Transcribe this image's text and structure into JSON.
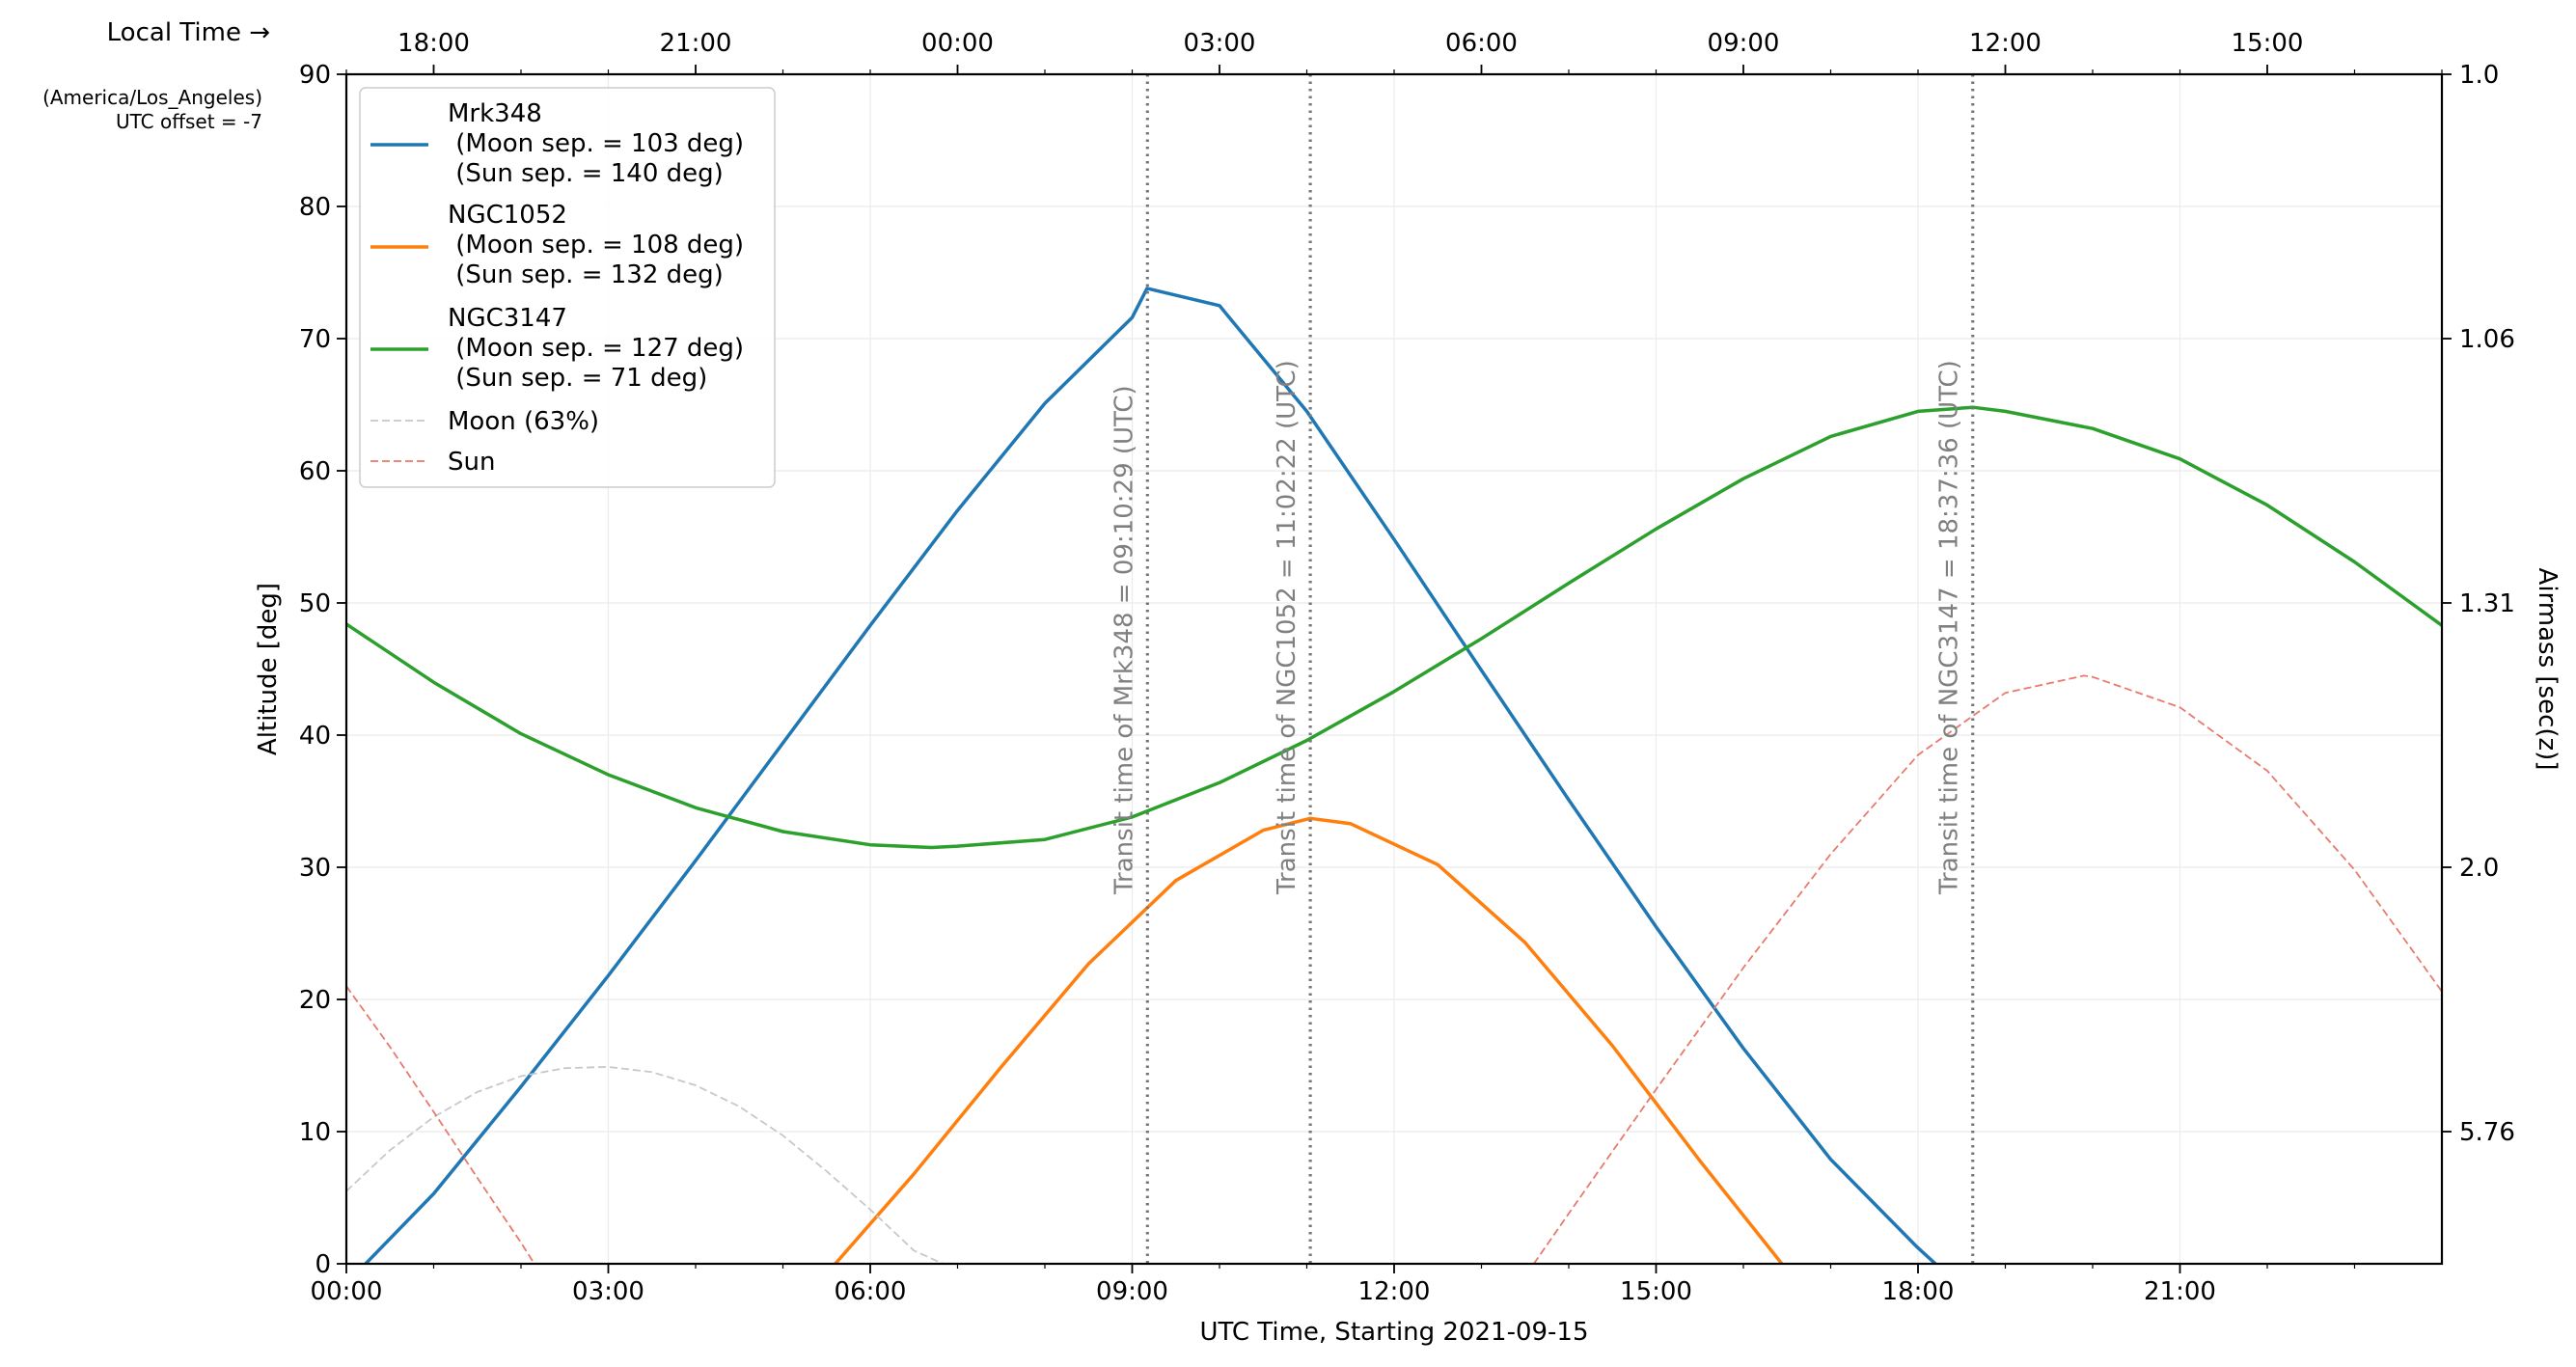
{
  "chart_data": {
    "type": "line",
    "xlabel": "UTC Time, Starting 2021-09-15",
    "ylabel": "Altitude [deg]",
    "y2label": "Airmass [sec(z)]",
    "top_axis_title": "Local Time →",
    "timezone_note": "(America/Los_Angeles)",
    "offset_note": "UTC offset = -7",
    "xlim": [
      0,
      24
    ],
    "ylim": [
      0,
      90
    ],
    "grid": true,
    "legend_position": "top-left",
    "x_ticks": [
      {
        "value": 0,
        "label": "00:00"
      },
      {
        "value": 3,
        "label": "03:00"
      },
      {
        "value": 6,
        "label": "06:00"
      },
      {
        "value": 9,
        "label": "09:00"
      },
      {
        "value": 12,
        "label": "12:00"
      },
      {
        "value": 15,
        "label": "15:00"
      },
      {
        "value": 18,
        "label": "18:00"
      },
      {
        "value": 21,
        "label": "21:00"
      }
    ],
    "y_ticks": [
      0,
      10,
      20,
      30,
      40,
      50,
      60,
      70,
      80,
      90
    ],
    "top_ticks": [
      {
        "value": 1,
        "label": "18:00"
      },
      {
        "value": 4,
        "label": "21:00"
      },
      {
        "value": 7,
        "label": "00:00"
      },
      {
        "value": 10,
        "label": "03:00"
      },
      {
        "value": 13,
        "label": "06:00"
      },
      {
        "value": 16,
        "label": "09:00"
      },
      {
        "value": 19,
        "label": "12:00"
      },
      {
        "value": 22,
        "label": "15:00"
      }
    ],
    "airmass_ticks": [
      {
        "altitude": 90,
        "label": "1.0"
      },
      {
        "altitude": 70,
        "label": "1.06"
      },
      {
        "altitude": 50,
        "label": "1.31"
      },
      {
        "altitude": 30,
        "label": "2.0"
      },
      {
        "altitude": 10,
        "label": "5.76"
      }
    ],
    "series": [
      {
        "name": "Mrk348",
        "legend_lines": [
          "Mrk348",
          " (Moon sep. = 103 deg)",
          " (Sun sep. = 140 deg)"
        ],
        "color": "#1f77b4",
        "style": "solid",
        "x": [
          0,
          1,
          2,
          3,
          4,
          5,
          6,
          7,
          8,
          9,
          9.17,
          10,
          11,
          12,
          13,
          14,
          15,
          16,
          17,
          18,
          18.2
        ],
        "y": [
          -1.5,
          5.3,
          13.4,
          21.8,
          30.5,
          39.4,
          48.3,
          57.0,
          65.1,
          71.6,
          73.8,
          72.5,
          64.5,
          54.8,
          44.9,
          35.1,
          25.5,
          16.3,
          7.9,
          1.2,
          0
        ]
      },
      {
        "name": "NGC1052",
        "legend_lines": [
          "NGC1052",
          " (Moon sep. = 108 deg)",
          " (Sun sep. = 132 deg)"
        ],
        "color": "#ff7f0e",
        "style": "solid",
        "x": [
          5.6,
          6.5,
          7.5,
          8.5,
          9.5,
          10.5,
          11.04,
          11.5,
          12.5,
          13.5,
          14.5,
          15.5,
          16.5
        ],
        "y": [
          0,
          6.8,
          14.9,
          22.7,
          29.0,
          32.8,
          33.7,
          33.3,
          30.2,
          24.3,
          16.5,
          7.8,
          -0.5
        ]
      },
      {
        "name": "NGC3147",
        "legend_lines": [
          "NGC3147",
          " (Moon sep. = 127 deg)",
          " (Sun sep. = 71 deg)"
        ],
        "color": "#2ca02c",
        "style": "solid",
        "x": [
          0,
          1,
          2,
          3,
          4,
          5,
          6,
          6.7,
          7,
          8,
          9,
          10,
          11,
          12,
          13,
          14,
          15,
          16,
          17,
          18,
          18.63,
          19,
          20,
          21,
          22,
          23,
          24
        ],
        "y": [
          48.4,
          44.0,
          40.1,
          37.0,
          34.5,
          32.7,
          31.7,
          31.5,
          31.6,
          32.1,
          33.8,
          36.4,
          39.6,
          43.3,
          47.3,
          51.5,
          55.6,
          59.4,
          62.6,
          64.5,
          64.8,
          64.5,
          63.2,
          60.9,
          57.4,
          53.1,
          48.3
        ]
      },
      {
        "name": "Moon (63%)",
        "legend_lines": [
          "Moon (63%)"
        ],
        "color": "#c8c8c8",
        "style": "dashed",
        "x": [
          0,
          0.5,
          1,
          1.5,
          2,
          2.5,
          3,
          3.5,
          4,
          4.5,
          5,
          5.5,
          6,
          6.5,
          7.0
        ],
        "y": [
          5.5,
          8.6,
          11.1,
          13.0,
          14.2,
          14.8,
          14.9,
          14.5,
          13.5,
          11.9,
          9.7,
          7.0,
          4.1,
          1.0,
          -0.5
        ]
      },
      {
        "name": "Sun",
        "legend_lines": [
          "Sun"
        ],
        "color": "#e87a6c",
        "style": "dashed",
        "segments": [
          {
            "x": [
              0,
              0.5,
              1,
              1.5,
              2,
              2.2
            ],
            "y": [
              21.0,
              16.4,
              11.5,
              6.5,
              1.6,
              -0.5
            ]
          },
          {
            "x": [
              13.6,
              14,
              15,
              16,
              17,
              18,
              19,
              19.9,
              20,
              21,
              22,
              23,
              24
            ],
            "y": [
              0,
              3.8,
              13.2,
              22.4,
              31.0,
              38.5,
              43.2,
              44.5,
              44.4,
              42.1,
              37.3,
              29.8,
              20.6
            ]
          }
        ]
      }
    ],
    "transits": [
      {
        "x": 9.175,
        "label": "Transit time of Mrk348 =  09:10:29 (UTC)"
      },
      {
        "x": 11.04,
        "label": "Transit time of NGC1052 =  11:02:22 (UTC)"
      },
      {
        "x": 18.627,
        "label": "Transit time of NGC3147 =  18:37:36 (UTC)"
      }
    ]
  }
}
